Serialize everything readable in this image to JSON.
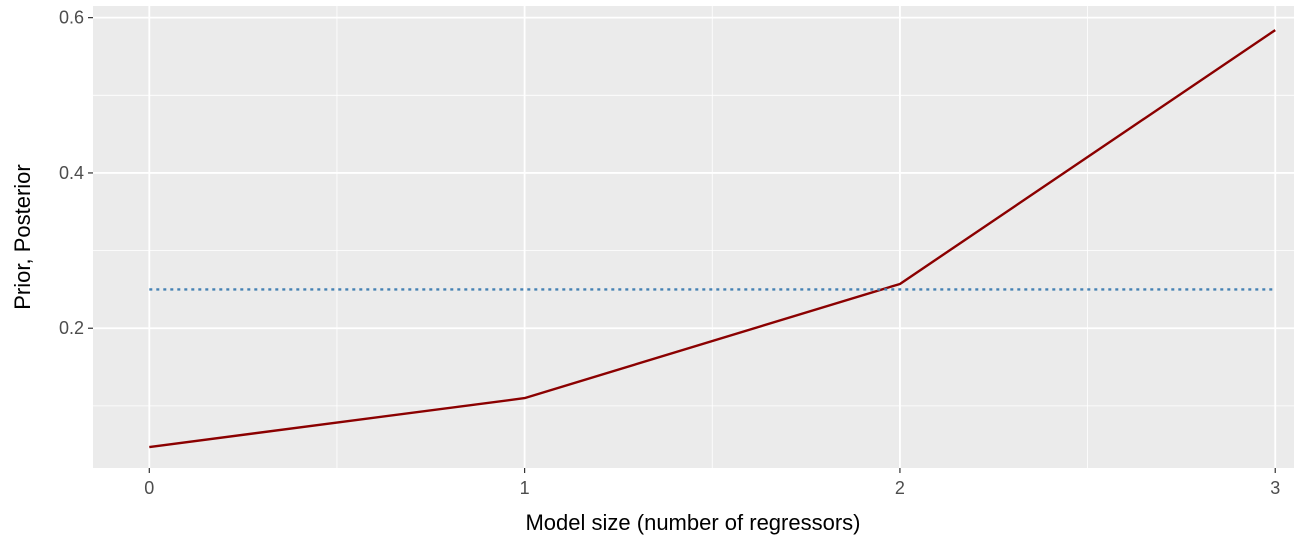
{
  "chart_data": {
    "type": "line",
    "title": "",
    "xlabel": "Model size (number of regressors)",
    "ylabel": "Prior, Posterior",
    "xlim": [
      -0.15,
      3.05
    ],
    "ylim": [
      0.02,
      0.615
    ],
    "x_ticks": [
      0,
      1,
      2,
      3
    ],
    "x_tick_labels": [
      "0",
      "1",
      "2",
      "3"
    ],
    "x_minor_ticks": [
      0.5,
      1.5,
      2.5
    ],
    "y_ticks": [
      0.2,
      0.4,
      0.6
    ],
    "y_tick_labels": [
      "0.2",
      "0.4",
      "0.6"
    ],
    "y_minor_ticks": [
      0.1,
      0.3,
      0.5
    ],
    "grid": true,
    "legend": "none",
    "series": [
      {
        "x": [
          0,
          1,
          2,
          3
        ],
        "values": [
          0.047,
          0.11,
          0.257,
          0.584
        ],
        "color": "#8b0000",
        "style": "solid"
      },
      {
        "x": [
          0,
          1,
          2,
          3
        ],
        "values": [
          0.25,
          0.25,
          0.25,
          0.25
        ],
        "color": "#4682b4",
        "style": "dotted"
      }
    ]
  },
  "colors": {
    "panel_background": "#ebebeb",
    "grid": "#ffffff",
    "tick_mark": "#333333"
  }
}
